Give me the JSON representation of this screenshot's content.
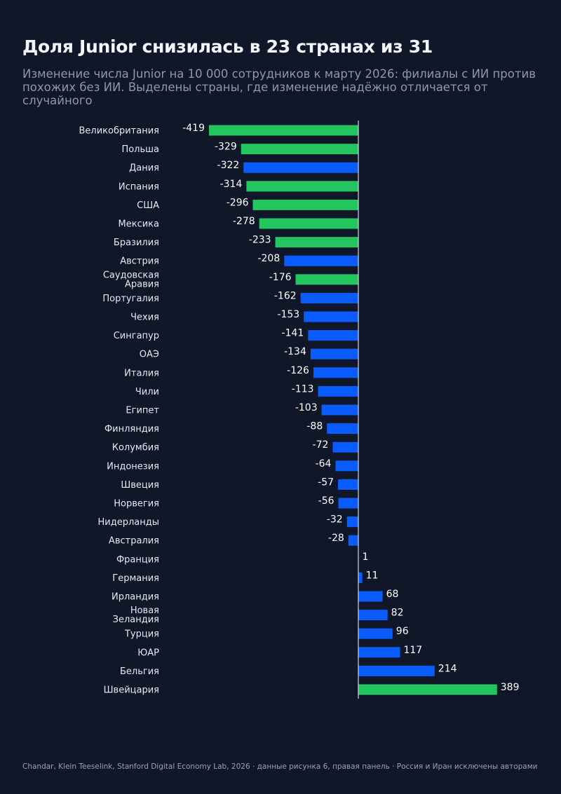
{
  "header": {
    "title": "Доля Junior снизилась в 23 странах из 31",
    "subtitle_line1": "Изменение числа Junior на 10 000 сотрудников к марту 2026: филиалы с ИИ против",
    "subtitle_line2": "похожих без ИИ. Выделены страны, где изменение надёжно отличается от случайного"
  },
  "footer": {
    "source": "Chandar, Klein Teeselink, Stanford Digital Economy Lab, 2026 · данные рисунка 6, правая панель · Россия и Иран исключены авторами"
  },
  "colors": {
    "significant": "#22c55e",
    "not_significant": "#0a5cff",
    "background": "#0f1729",
    "zero_line": "#d0d5dd"
  },
  "chart_data": {
    "type": "bar",
    "orientation": "horizontal",
    "title": "Доля Junior снизилась в 23 странах из 31",
    "xlabel": "",
    "ylabel": "",
    "grid": false,
    "legend": "none",
    "categories": [
      "Великобритания",
      "Польша",
      "Дания",
      "Испания",
      "США",
      "Мексика",
      "Бразилия",
      "Австрия",
      "Саудовская Аравия",
      "Португалия",
      "Чехия",
      "Сингапур",
      "ОАЭ",
      "Италия",
      "Чили",
      "Египет",
      "Финляндия",
      "Колумбия",
      "Индонезия",
      "Швеция",
      "Норвегия",
      "Нидерланды",
      "Австралия",
      "Франция",
      "Германия",
      "Ирландия",
      "Новая Зеландия",
      "Турция",
      "ЮАР",
      "Бельгия",
      "Швейцария"
    ],
    "values": [
      -419,
      -329,
      -322,
      -314,
      -296,
      -278,
      -233,
      -208,
      -176,
      -162,
      -153,
      -141,
      -134,
      -126,
      -113,
      -103,
      -88,
      -72,
      -64,
      -57,
      -56,
      -32,
      -28,
      1,
      11,
      68,
      82,
      96,
      117,
      214,
      389
    ],
    "significant": [
      true,
      true,
      false,
      true,
      true,
      true,
      true,
      false,
      true,
      false,
      false,
      false,
      false,
      false,
      false,
      false,
      false,
      false,
      false,
      false,
      false,
      false,
      false,
      false,
      false,
      false,
      false,
      false,
      false,
      false,
      true
    ],
    "xlim": [
      -419,
      389
    ]
  }
}
